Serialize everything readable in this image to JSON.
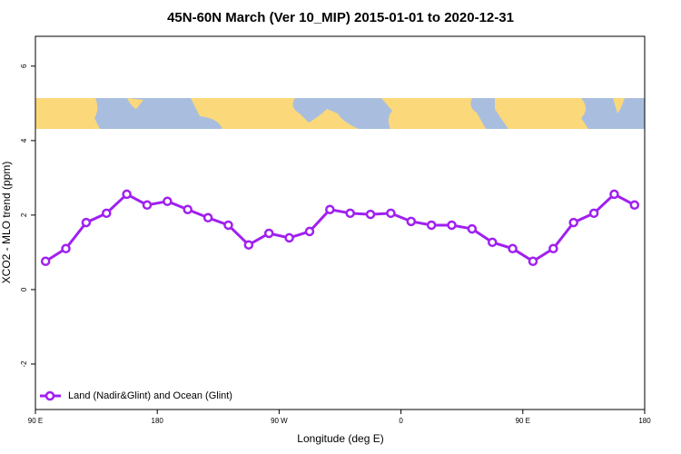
{
  "chart_data": {
    "type": "line",
    "title": "45N-60N March (Ver 10_MIP)   2015-01-01 to 2020-12-31",
    "x_label": "Longitude (deg E)",
    "y_label": "XCO2 - MLO trend (ppm)",
    "xlim": [
      90,
      540
    ],
    "xticks": [
      {
        "value": 90,
        "label": "90 E"
      },
      {
        "value": 180,
        "label": "180"
      },
      {
        "value": 270,
        "label": "90 W"
      },
      {
        "value": 360,
        "label": "0"
      },
      {
        "value": 450,
        "label": "90 E"
      },
      {
        "value": 540,
        "label": "180"
      }
    ],
    "ylim": [
      -3.22,
      6.8
    ],
    "yticks": [
      -2,
      0,
      2,
      4,
      6
    ],
    "grid": false,
    "legend": "bottom-left",
    "x": [
      97.5,
      112.5,
      127.5,
      142.5,
      157.5,
      172.5,
      187.5,
      202.5,
      217.5,
      232.5,
      247.5,
      262.5,
      277.5,
      292.5,
      307.5,
      322.5,
      337.5,
      352.5,
      367.5,
      382.5,
      397.5,
      412.5,
      427.5,
      442.5,
      457.5,
      472.5,
      487.5,
      502.5,
      517.5,
      532.5
    ],
    "series": [
      {
        "name": "Land (Nadir&Glint) and Ocean (Glint)",
        "color": "#a020f0",
        "values": [
          0.76,
          1.1,
          1.8,
          2.05,
          2.56,
          2.27,
          2.37,
          2.15,
          1.93,
          1.73,
          1.2,
          1.51,
          1.39,
          1.56,
          2.15,
          2.05,
          2.02,
          2.05,
          1.83,
          1.73,
          1.73,
          1.63,
          1.27,
          1.1,
          0.76,
          1.1,
          1.8,
          2.05,
          2.56,
          2.27
        ]
      }
    ]
  }
}
